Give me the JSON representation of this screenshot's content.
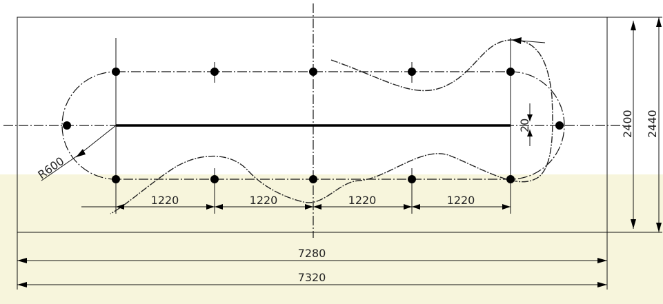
{
  "dimensions": {
    "spacing_1": "1220",
    "spacing_2": "1220",
    "spacing_3": "1220",
    "spacing_4": "1220",
    "inner_width": "7280",
    "outer_width": "7320",
    "inner_height": "2400",
    "outer_height": "2440",
    "offset": "20",
    "radius": "R600"
  },
  "colors": {
    "line": "#111111",
    "highlight_band": "#f7f5dc",
    "dot": "#000000"
  }
}
